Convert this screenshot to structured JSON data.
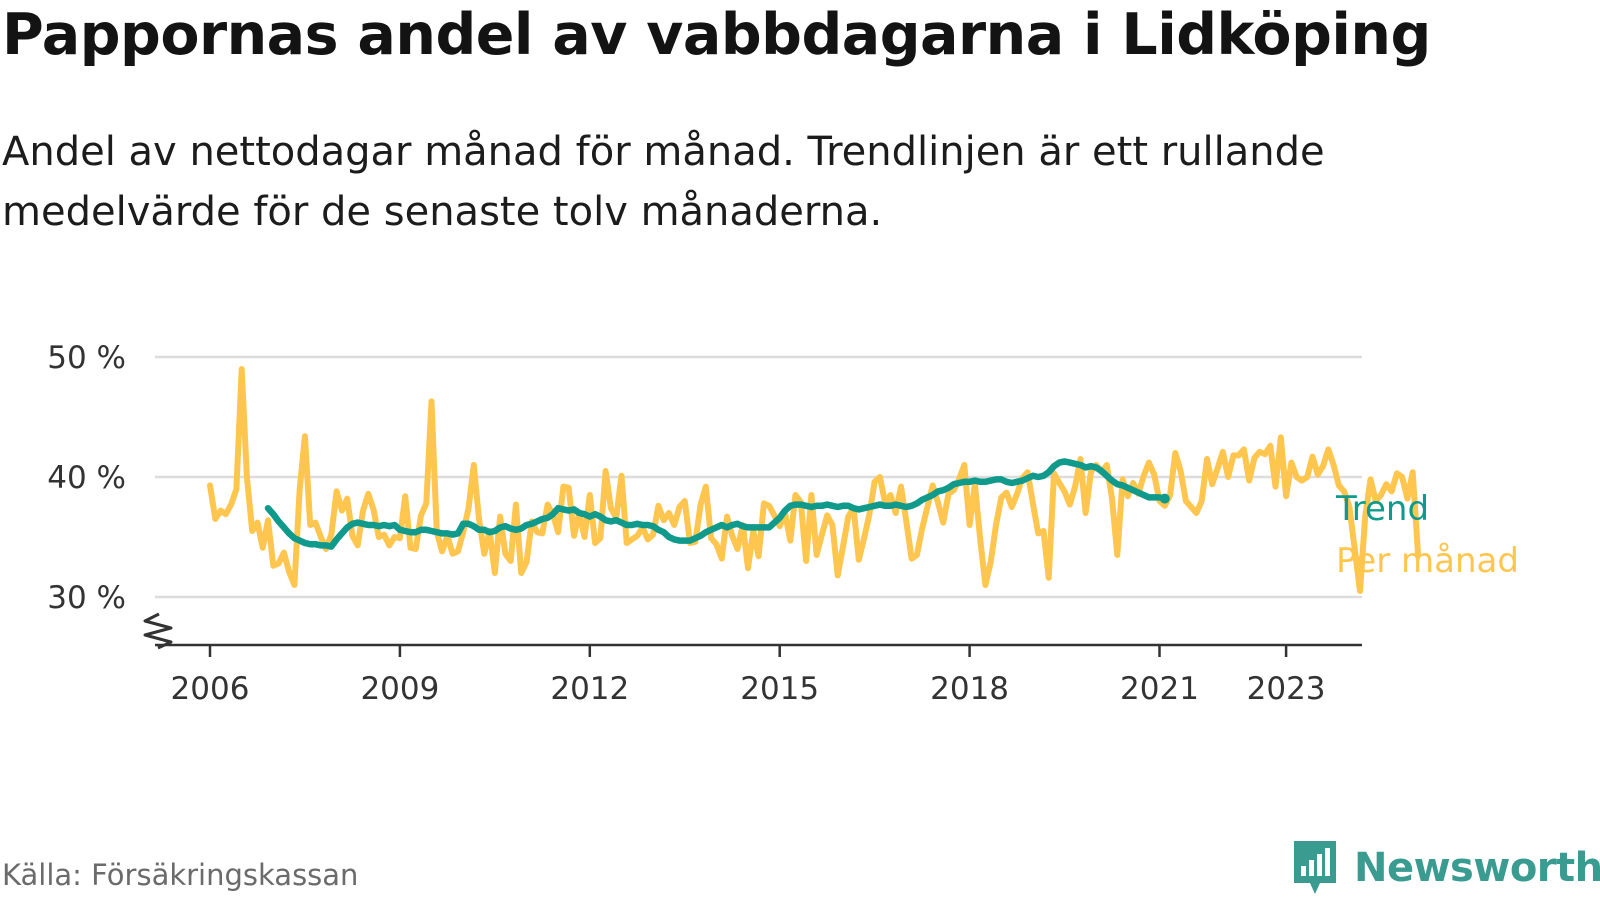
{
  "title": "Pappornas andel av vabbdagarna i Lidköping",
  "subtitle": "Andel av nettodagar månad för månad. Trendlinjen är ett rullande medelvärde för de senaste tolv månaderna.",
  "source": "Källa: Försäkringskassan",
  "brand": "Newsworthy",
  "colors": {
    "monthly": "#ffc64f",
    "trend": "#0f9a8c",
    "grid": "#dddddd",
    "axis": "#333333",
    "brand": "#3a9b91"
  },
  "chart_data": {
    "type": "line",
    "ylim": [
      30,
      50
    ],
    "y_ticks": [
      {
        "value": 30,
        "label": "30 %"
      },
      {
        "value": 40,
        "label": "40 %"
      },
      {
        "value": 50,
        "label": "50 %"
      }
    ],
    "x_ticks": [
      {
        "value": 2006,
        "label": "2006"
      },
      {
        "value": 2009,
        "label": "2009"
      },
      {
        "value": 2012,
        "label": "2012"
      },
      {
        "value": 2015,
        "label": "2015"
      },
      {
        "value": 2018,
        "label": "2018"
      },
      {
        "value": 2021,
        "label": "2021"
      },
      {
        "value": 2023,
        "label": "2023"
      }
    ],
    "x_start": "2006-01",
    "grid": true,
    "axis_break": true,
    "series": [
      {
        "name": "Trend",
        "x_start": "2006-12",
        "values": [
          37.4,
          36.9,
          36.3,
          35.8,
          35.3,
          34.9,
          34.7,
          34.5,
          34.4,
          34.4,
          34.3,
          34.3,
          34.2,
          34.8,
          35.3,
          35.8,
          36.1,
          36.2,
          36.1,
          36.0,
          36.0,
          35.9,
          36.0,
          35.9,
          36.0,
          35.6,
          35.5,
          35.4,
          35.4,
          35.6,
          35.6,
          35.5,
          35.4,
          35.3,
          35.3,
          35.2,
          35.3,
          36.1,
          36.1,
          35.9,
          35.6,
          35.6,
          35.4,
          35.5,
          35.8,
          35.9,
          35.7,
          35.6,
          35.7,
          36.0,
          36.1,
          36.3,
          36.5,
          36.6,
          36.9,
          37.4,
          37.3,
          37.2,
          37.3,
          37.0,
          36.9,
          36.7,
          36.9,
          36.7,
          36.4,
          36.3,
          36.4,
          36.2,
          36.0,
          36.0,
          36.1,
          36.0,
          36.0,
          35.9,
          35.6,
          35.4,
          35.0,
          34.8,
          34.7,
          34.7,
          34.7,
          34.9,
          35.1,
          35.4,
          35.6,
          35.8,
          36.0,
          35.8,
          36.0,
          36.1,
          35.9,
          35.8,
          35.8,
          35.8,
          35.8,
          35.8,
          36.2,
          36.6,
          37.2,
          37.6,
          37.7,
          37.7,
          37.6,
          37.5,
          37.6,
          37.6,
          37.7,
          37.6,
          37.5,
          37.6,
          37.6,
          37.4,
          37.3,
          37.4,
          37.5,
          37.6,
          37.7,
          37.6,
          37.6,
          37.7,
          37.6,
          37.5,
          37.6,
          37.8,
          38.1,
          38.3,
          38.5,
          38.8,
          38.9,
          39.1,
          39.4,
          39.5,
          39.6,
          39.6,
          39.7,
          39.6,
          39.6,
          39.7,
          39.8,
          39.8,
          39.6,
          39.5,
          39.6,
          39.7,
          39.9,
          40.1,
          40.0,
          40.1,
          40.4,
          40.9,
          41.2,
          41.3,
          41.2,
          41.1,
          41.0,
          40.8,
          40.9,
          40.8,
          40.5,
          40.1,
          39.7,
          39.4,
          39.3,
          39.1,
          38.9,
          38.7,
          38.5,
          38.3,
          38.3,
          38.3,
          38.2
        ]
      },
      {
        "name": "Per månad",
        "x_start": "2006-01",
        "values": [
          39.3,
          36.5,
          37.2,
          36.9,
          37.7,
          39.0,
          49.0,
          40.0,
          35.5,
          36.2,
          34.1,
          36.4,
          32.6,
          32.8,
          33.7,
          32.1,
          31.0,
          39.0,
          43.4,
          36.0,
          36.2,
          35.0,
          34.0,
          35.2,
          38.8,
          37.2,
          38.2,
          35.1,
          34.3,
          37.2,
          38.6,
          37.3,
          35.0,
          35.2,
          34.3,
          35.0,
          34.9,
          38.4,
          34.1,
          34.0,
          36.8,
          37.8,
          46.3,
          35.4,
          33.8,
          35.1,
          33.6,
          33.8,
          35.4,
          37.4,
          41.0,
          36.5,
          33.6,
          35.5,
          32.0,
          36.7,
          33.6,
          33.0,
          37.7,
          32.0,
          32.9,
          36.3,
          35.4,
          35.3,
          37.7,
          36.9,
          35.4,
          39.2,
          39.1,
          35.1,
          37.0,
          35.0,
          38.5,
          34.5,
          34.9,
          40.5,
          37.4,
          36.6,
          40.1,
          34.5,
          34.8,
          35.1,
          35.8,
          34.8,
          35.2,
          37.6,
          36.4,
          37.0,
          36.0,
          37.5,
          38.0,
          34.5,
          34.6,
          37.7,
          39.2,
          34.9,
          34.4,
          33.2,
          36.7,
          35.1,
          34.0,
          36.0,
          32.4,
          35.5,
          33.4,
          37.8,
          37.6,
          36.8,
          35.9,
          37.0,
          34.7,
          38.5,
          37.9,
          33.0,
          38.5,
          33.5,
          35.2,
          36.8,
          36.0,
          31.8,
          34.2,
          36.7,
          37.4,
          33.1,
          34.9,
          36.9,
          39.6,
          40.0,
          37.8,
          38.5,
          37.0,
          39.2,
          36.3,
          33.2,
          33.5,
          35.7,
          37.5,
          39.3,
          37.9,
          36.2,
          38.6,
          38.9,
          39.8,
          41.0,
          36.0,
          39.4,
          34.8,
          31.0,
          32.9,
          36.0,
          38.3,
          38.7,
          37.5,
          38.6,
          39.9,
          40.4,
          37.8,
          35.3,
          35.5,
          31.6,
          40.3,
          39.5,
          38.8,
          37.7,
          39.2,
          41.5,
          37.0,
          40.4,
          41.0,
          40.4,
          41.0,
          38.2,
          33.5,
          39.8,
          38.4,
          39.5,
          38.6,
          40.1,
          41.2,
          40.2,
          38.0,
          37.6,
          38.5,
          42.0,
          40.5,
          38.0,
          37.5,
          37.0,
          38.0,
          41.5,
          39.4,
          40.7,
          42.1,
          40.0,
          41.8,
          41.8,
          42.3,
          39.7,
          41.6,
          42.1,
          41.9,
          42.6,
          39.2,
          43.3,
          38.4,
          41.2,
          40.0,
          39.7,
          40.0,
          41.7,
          40.2,
          40.9,
          42.3,
          41.0,
          39.3,
          38.8,
          37.5,
          34.0,
          30.5,
          36.7,
          39.8,
          38.0,
          38.5,
          39.4,
          38.8,
          40.3,
          40.0,
          38.2,
          40.4,
          33.6
        ]
      }
    ],
    "xlabel": "",
    "ylabel": ""
  }
}
